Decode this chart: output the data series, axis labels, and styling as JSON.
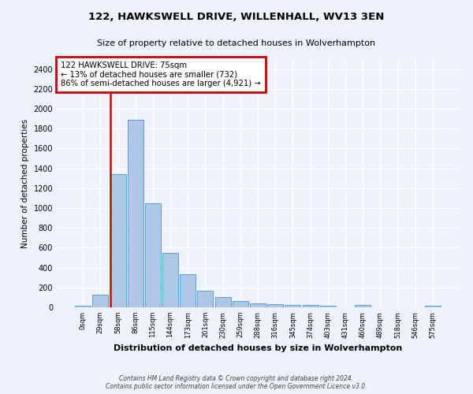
{
  "title": "122, HAWKSWELL DRIVE, WILLENHALL, WV13 3EN",
  "subtitle": "Size of property relative to detached houses in Wolverhampton",
  "xlabel": "Distribution of detached houses by size in Wolverhampton",
  "ylabel": "Number of detached properties",
  "bar_color": "#aec6e8",
  "bar_edge_color": "#5a9fd4",
  "background_color": "#eef2fa",
  "grid_color": "#ffffff",
  "categories": [
    "0sqm",
    "29sqm",
    "58sqm",
    "86sqm",
    "115sqm",
    "144sqm",
    "173sqm",
    "201sqm",
    "230sqm",
    "259sqm",
    "288sqm",
    "316sqm",
    "345sqm",
    "374sqm",
    "403sqm",
    "431sqm",
    "460sqm",
    "489sqm",
    "518sqm",
    "546sqm",
    "575sqm"
  ],
  "values": [
    15,
    125,
    1345,
    1890,
    1045,
    545,
    335,
    165,
    105,
    65,
    40,
    30,
    25,
    20,
    15,
    0,
    25,
    0,
    0,
    0,
    15
  ],
  "ylim": [
    0,
    2500
  ],
  "yticks": [
    0,
    200,
    400,
    600,
    800,
    1000,
    1200,
    1400,
    1600,
    1800,
    2000,
    2200,
    2400
  ],
  "annotation_text": "122 HAWKSWELL DRIVE: 75sqm\n← 13% of detached houses are smaller (732)\n86% of semi-detached houses are larger (4,921) →",
  "annotation_box_color": "#ffffff",
  "annotation_border_color": "#cc0000",
  "vline_color": "#cc0000",
  "footer_line1": "Contains HM Land Registry data © Crown copyright and database right 2024.",
  "footer_line2": "Contains public sector information licensed under the Open Government Licence v3.0."
}
